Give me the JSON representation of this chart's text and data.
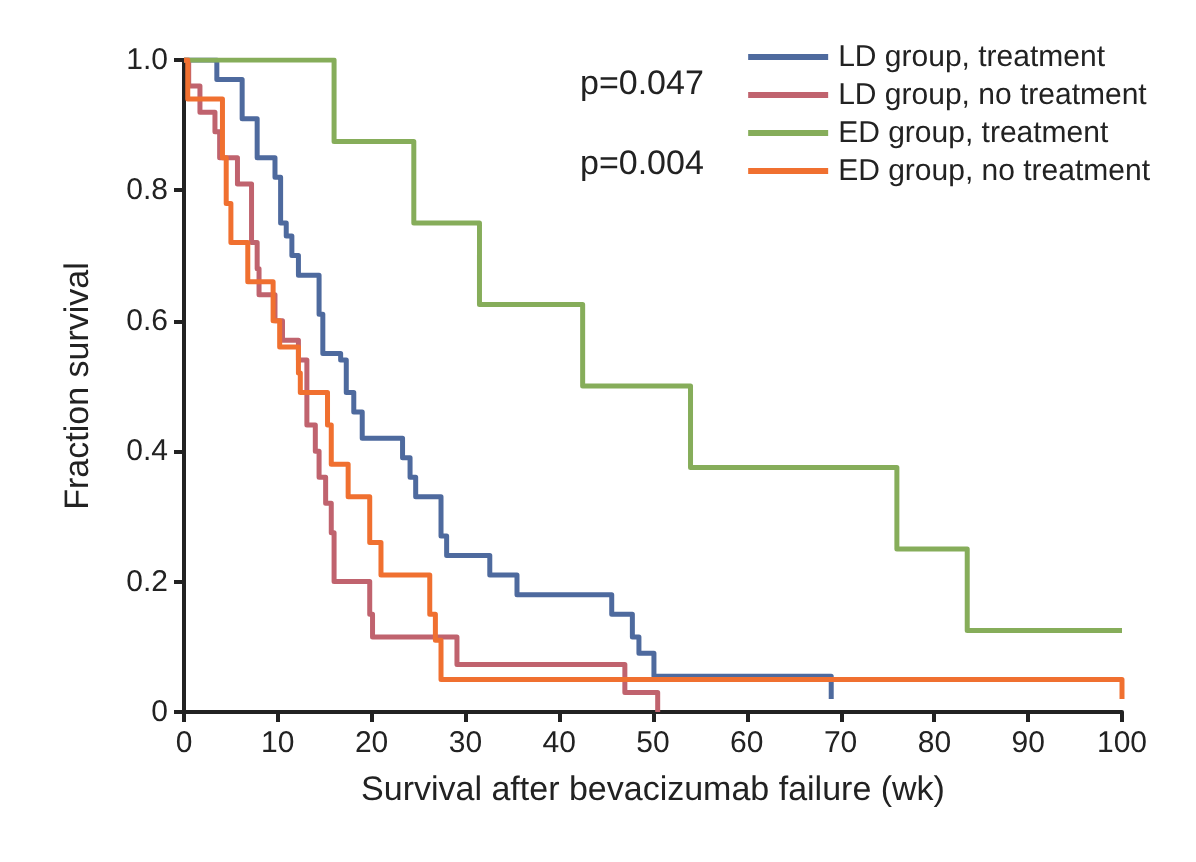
{
  "chart_data": {
    "type": "step",
    "xlabel": "Survival after bevacizumab failure (wk)",
    "ylabel": "Fraction survival",
    "xlim": [
      0,
      100
    ],
    "ylim": [
      0,
      1
    ],
    "xticks": [
      0,
      10,
      20,
      30,
      40,
      50,
      60,
      70,
      80,
      90,
      100
    ],
    "yticks": [
      0,
      0.2,
      0.4,
      0.6,
      0.8,
      {
        "value": 1,
        "label": "1.0"
      }
    ],
    "grid": false,
    "legend": "top right",
    "marker": "none",
    "line_style": "solid",
    "annotations": [
      "p=0.047",
      "p=0.004"
    ],
    "series": [
      {
        "name": "LD group, treatment",
        "color": "#4e6a9e",
        "x": [
          0,
          3.5,
          6.2,
          7.8,
          9.7,
          10.3,
          10.9,
          11.5,
          12.2,
          14.4,
          14.8,
          16.7,
          17.3,
          18.1,
          19,
          23.3,
          24.1,
          24.7,
          27.4,
          28,
          32.6,
          35.5,
          45.6,
          47.8,
          48.5,
          50.1,
          69
        ],
        "values": [
          1,
          0.97,
          0.91,
          0.85,
          0.82,
          0.75,
          0.73,
          0.7,
          0.67,
          0.61,
          0.55,
          0.54,
          0.49,
          0.46,
          0.42,
          0.39,
          0.36,
          0.33,
          0.27,
          0.24,
          0.21,
          0.18,
          0.15,
          0.115,
          0.09,
          0.055,
          0.02
        ]
      },
      {
        "name": "LD group, no treatment",
        "color": "#c0636e",
        "x": [
          0,
          0.5,
          1.7,
          3.3,
          3.8,
          5.7,
          7.2,
          7.8,
          8,
          9.7,
          10.5,
          12.2,
          13.1,
          14,
          14.4,
          15.1,
          15.7,
          16,
          19.8,
          20.1,
          29.1,
          47,
          50.5
        ],
        "values": [
          1,
          0.96,
          0.92,
          0.89,
          0.85,
          0.81,
          0.72,
          0.68,
          0.64,
          0.6,
          0.57,
          0.54,
          0.44,
          0.4,
          0.36,
          0.32,
          0.275,
          0.2,
          0.15,
          0.115,
          0.073,
          0.03,
          0
        ]
      },
      {
        "name": "ED group, treatment",
        "color": "#86ad5a",
        "x": [
          0,
          16,
          24.5,
          31.5,
          42.5,
          54,
          76,
          83.5,
          100
        ],
        "values": [
          1,
          0.875,
          0.75,
          0.625,
          0.5,
          0.375,
          0.25,
          0.125,
          0.125
        ]
      },
      {
        "name": "ED group, no treatment",
        "color": "#f07030",
        "x": [
          0,
          0.4,
          4.1,
          4.5,
          5,
          6.8,
          9.5,
          10.2,
          12.2,
          12.4,
          15.3,
          15.7,
          17.5,
          19.8,
          21,
          26.2,
          26.8,
          27.4,
          100
        ],
        "values": [
          1,
          0.94,
          0.85,
          0.78,
          0.72,
          0.66,
          0.6,
          0.56,
          0.52,
          0.49,
          0.44,
          0.38,
          0.33,
          0.26,
          0.21,
          0.15,
          0.11,
          0.05,
          0.02
        ]
      }
    ]
  }
}
